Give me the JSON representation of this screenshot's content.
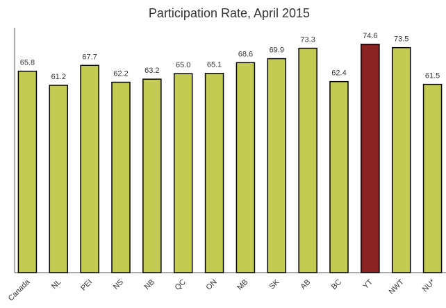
{
  "chart_data": {
    "type": "bar",
    "title": "Participation Rate, April 2015",
    "categories": [
      "Canada",
      "NL",
      "PEI",
      "NS",
      "NB",
      "QC",
      "ON",
      "MB",
      "SK",
      "AB",
      "BC",
      "YT",
      "NWT",
      "NU*"
    ],
    "values": [
      65.8,
      61.2,
      67.7,
      62.2,
      63.2,
      65.0,
      65.1,
      68.6,
      69.9,
      73.3,
      62.4,
      74.6,
      73.5,
      61.5
    ],
    "value_labels": [
      "65.8",
      "61.2",
      "67.7",
      "62.2",
      "63.2",
      "65.0",
      "65.1",
      "68.6",
      "69.9",
      "73.3",
      "62.4",
      "74.6",
      "73.5",
      "61.5"
    ],
    "colors": [
      "#c4cb53",
      "#c4cb53",
      "#c4cb53",
      "#c4cb53",
      "#c4cb53",
      "#c4cb53",
      "#c4cb53",
      "#c4cb53",
      "#c4cb53",
      "#c4cb53",
      "#c4cb53",
      "#8b2323",
      "#c4cb53",
      "#c4cb53"
    ],
    "ylim": [
      0,
      80
    ]
  }
}
